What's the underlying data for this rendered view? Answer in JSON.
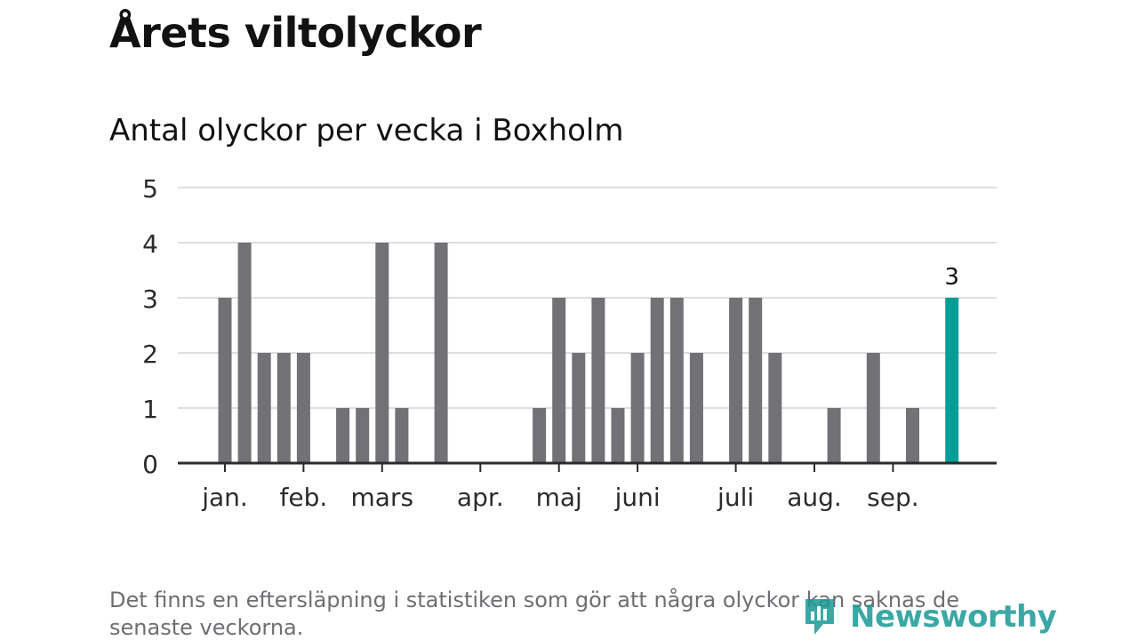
{
  "title": "Årets viltolyckor",
  "subtitle": "Antal olyckor per vecka i Boxholm",
  "footnote": "Det finns en eftersläpning i statistiken som gör att några olyckor kan saknas de senaste veckorna.",
  "logo": {
    "text": "Newsworthy",
    "icon": "newsworthy-logo-icon"
  },
  "colors": {
    "bar": "#727176",
    "highlight": "#009e96",
    "grid": "#dedede",
    "axis": "#2b2b2b",
    "text": "#121212"
  },
  "chart_data": {
    "type": "bar",
    "title": "Antal olyckor per vecka i Boxholm",
    "xlabel": "",
    "ylabel": "",
    "ylim": [
      0,
      5
    ],
    "yticks": [
      "0",
      "1",
      "2",
      "3",
      "4",
      "5"
    ],
    "grid": true,
    "legend": "none",
    "month_labels": [
      "jan.",
      "feb.",
      "mars",
      "apr.",
      "maj",
      "juni",
      "juli",
      "aug.",
      "sep."
    ],
    "month_start_week": [
      1,
      5,
      9,
      14,
      18,
      22,
      27,
      31,
      35
    ],
    "weeks": [
      1,
      2,
      3,
      4,
      5,
      6,
      7,
      8,
      9,
      10,
      11,
      12,
      13,
      14,
      15,
      16,
      17,
      18,
      19,
      20,
      21,
      22,
      23,
      24,
      25,
      26,
      27,
      28,
      29,
      30,
      31,
      32,
      33,
      34,
      35,
      36,
      37,
      38
    ],
    "values": [
      3,
      4,
      2,
      2,
      2,
      0,
      1,
      1,
      4,
      1,
      0,
      4,
      0,
      0,
      0,
      0,
      1,
      3,
      2,
      3,
      1,
      2,
      3,
      3,
      2,
      0,
      3,
      3,
      2,
      0,
      0,
      1,
      0,
      2,
      0,
      1,
      0,
      3
    ],
    "highlight_index": 37,
    "highlight_label": "3"
  }
}
